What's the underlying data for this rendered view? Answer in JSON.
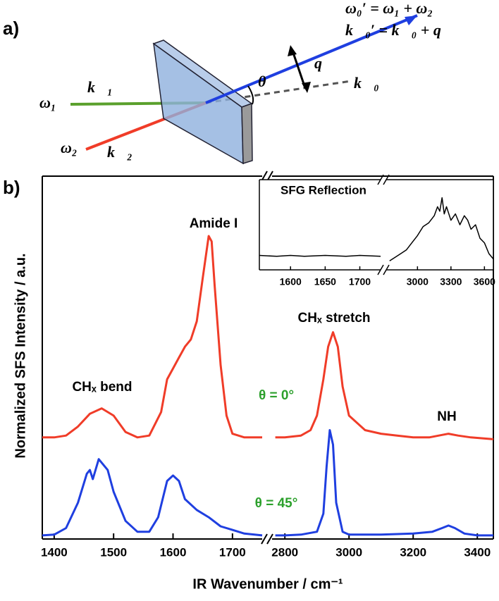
{
  "diagram": {
    "panel_label": "a)",
    "omega1": "ω₁",
    "k1": "k⃗₁",
    "omega2": "ω₂",
    "k2": "k⃗₂",
    "theta": "θ",
    "q": "q⃗",
    "k0": "k⃗₀",
    "equation1": "ω₀′ = ω₁ + ω₂",
    "equation2": "k⃗₀′ = k⃗₀ + q⃗"
  },
  "chart_data": {
    "type": "line",
    "panel_label": "b)",
    "x_label": "IR Wavenumber / cm⁻¹",
    "y_label": "Normalized SFS Intensity / a.u.",
    "xlim": [
      [
        1380,
        1750
      ],
      [
        2760,
        3450
      ]
    ],
    "xticks": [
      1400,
      1500,
      1600,
      1700,
      2800,
      3000,
      3200,
      3400
    ],
    "ylim": [
      0,
      1
    ],
    "annotations": [
      {
        "text": "Amide I",
        "color": "#000000"
      },
      {
        "text": "CHₓ bend",
        "color": "#000000"
      },
      {
        "text": "CHₓ stretch",
        "color": "#000000"
      },
      {
        "text": "NH",
        "color": "#000000"
      },
      {
        "text": "θ = 0°",
        "color": "#2ca02c"
      },
      {
        "text": "θ = 45°",
        "color": "#2ca02c"
      }
    ],
    "series": [
      {
        "color": "#f03c28",
        "x": [
          1380,
          1400,
          1420,
          1440,
          1460,
          1480,
          1500,
          1520,
          1540,
          1560,
          1580,
          1590,
          1600,
          1610,
          1620,
          1630,
          1640,
          1650,
          1660,
          1665,
          1670,
          1680,
          1690,
          1700,
          1720,
          1750,
          null,
          2770,
          2800,
          2850,
          2880,
          2900,
          2920,
          2935,
          2950,
          2965,
          2980,
          3000,
          3050,
          3100,
          3150,
          3200,
          3250,
          3280,
          3310,
          3340,
          3380,
          3450
        ],
        "values": [
          0.28,
          0.28,
          0.285,
          0.31,
          0.345,
          0.36,
          0.34,
          0.295,
          0.28,
          0.285,
          0.35,
          0.44,
          0.47,
          0.5,
          0.53,
          0.55,
          0.6,
          0.72,
          0.835,
          0.82,
          0.7,
          0.48,
          0.34,
          0.29,
          0.28,
          0.28,
          null,
          0.28,
          0.28,
          0.285,
          0.3,
          0.34,
          0.44,
          0.53,
          0.57,
          0.53,
          0.42,
          0.34,
          0.3,
          0.29,
          0.285,
          0.28,
          0.28,
          0.285,
          0.29,
          0.285,
          0.28,
          0.275
        ]
      },
      {
        "color": "#1f3fe0",
        "x": [
          1380,
          1400,
          1420,
          1440,
          1455,
          1460,
          1465,
          1475,
          1490,
          1500,
          1520,
          1540,
          1560,
          1575,
          1590,
          1600,
          1610,
          1620,
          1640,
          1660,
          1680,
          1700,
          1720,
          1750,
          null,
          2770,
          2800,
          2850,
          2900,
          2920,
          2930,
          2940,
          2950,
          2960,
          2980,
          3000,
          3100,
          3200,
          3260,
          3290,
          3310,
          3330,
          3360,
          3400,
          3450
        ],
        "values": [
          0.01,
          0.012,
          0.03,
          0.1,
          0.18,
          0.19,
          0.165,
          0.22,
          0.19,
          0.13,
          0.05,
          0.02,
          0.02,
          0.06,
          0.16,
          0.175,
          0.16,
          0.11,
          0.08,
          0.06,
          0.035,
          0.025,
          0.015,
          0.01,
          null,
          0.01,
          0.01,
          0.012,
          0.02,
          0.07,
          0.2,
          0.3,
          0.26,
          0.1,
          0.02,
          0.012,
          0.012,
          0.015,
          0.02,
          0.03,
          0.037,
          0.03,
          0.015,
          0.01,
          0.01
        ]
      }
    ],
    "inset": {
      "type": "line",
      "title": "SFG Reflection",
      "xlim": [
        [
          1555,
          1730
        ],
        [
          2720,
          3680
        ]
      ],
      "xticks": [
        1600,
        1650,
        1700,
        3000,
        3300,
        3600
      ],
      "ylim": [
        0,
        1
      ],
      "series": [
        {
          "color": "#000000",
          "x": [
            1555,
            1580,
            1600,
            1620,
            1650,
            1680,
            1700,
            1730,
            null,
            2750,
            2800,
            2850,
            2900,
            2950,
            3000,
            3050,
            3100,
            3150,
            3180,
            3200,
            3220,
            3240,
            3260,
            3300,
            3340,
            3380,
            3420,
            3450,
            3480,
            3520,
            3560,
            3600,
            3640,
            3680
          ],
          "values": [
            0.16,
            0.15,
            0.16,
            0.15,
            0.16,
            0.15,
            0.16,
            0.15,
            null,
            0.1,
            0.14,
            0.18,
            0.22,
            0.3,
            0.38,
            0.48,
            0.52,
            0.6,
            0.7,
            0.65,
            0.8,
            0.62,
            0.7,
            0.55,
            0.62,
            0.5,
            0.6,
            0.55,
            0.45,
            0.5,
            0.35,
            0.3,
            0.18,
            0.12
          ]
        }
      ]
    }
  }
}
